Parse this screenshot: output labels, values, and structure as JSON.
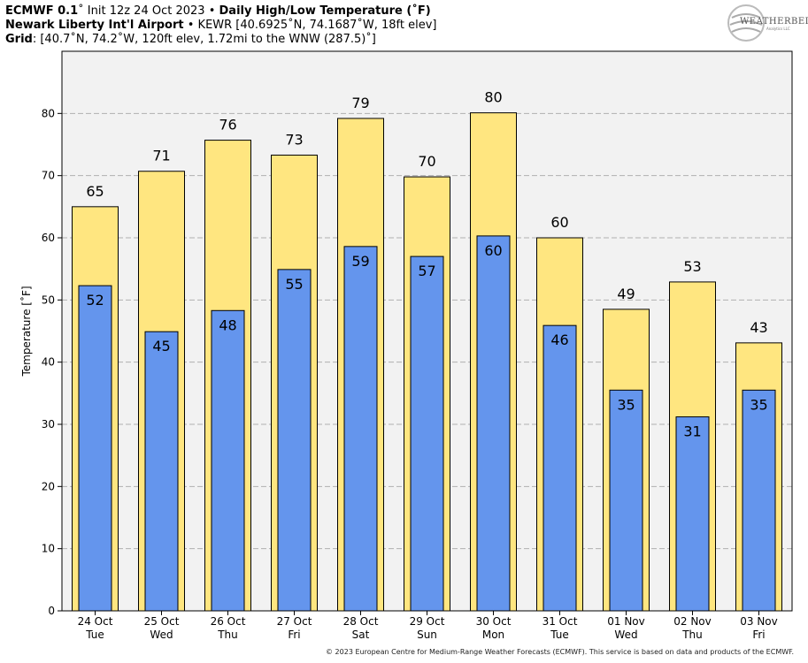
{
  "header": {
    "line1_model": "ECMWF 0.1",
    "line1_init": "˚ Init 12z 24 Oct 2023",
    "line1_sep": " • ",
    "line1_title": "Daily High/Low Temperature (˚F)",
    "line2_station": "Newark Liberty Int'l Airport",
    "line2_sep": " • ",
    "line2_detail": "KEWR [40.6925˚N, 74.1687˚W, 18ft elev]",
    "line3_label": "Grid",
    "line3_detail": ": [40.7˚N, 74.2˚W, 120ft elev, 1.72mi to the WNW (287.5)˚]"
  },
  "logo": {
    "text": "WEATHERBELL",
    "sub": "Analytics LLC"
  },
  "footer": {
    "text": "© 2023 European Centre for Medium-Range Weather Forecasts (ECMWF). This service is based on data and products of the ECMWF."
  },
  "colors": {
    "high_bar": "#ffe680",
    "low_bar": "#6495ed",
    "plot_bg": "#f2f2f2",
    "grid": "#b0b0b0"
  },
  "chart_data": {
    "type": "bar",
    "ylabel": "Temperature [˚F]",
    "ylim": [
      0,
      90
    ],
    "yticks": [
      0,
      10,
      20,
      30,
      40,
      50,
      60,
      70,
      80
    ],
    "grid": true,
    "categories": [
      {
        "date": "24 Oct",
        "day": "Tue"
      },
      {
        "date": "25 Oct",
        "day": "Wed"
      },
      {
        "date": "26 Oct",
        "day": "Thu"
      },
      {
        "date": "27 Oct",
        "day": "Fri"
      },
      {
        "date": "28 Oct",
        "day": "Sat"
      },
      {
        "date": "29 Oct",
        "day": "Sun"
      },
      {
        "date": "30 Oct",
        "day": "Mon"
      },
      {
        "date": "31 Oct",
        "day": "Tue"
      },
      {
        "date": "01 Nov",
        "day": "Wed"
      },
      {
        "date": "02 Nov",
        "day": "Thu"
      },
      {
        "date": "03 Nov",
        "day": "Fri"
      }
    ],
    "series": [
      {
        "key": "high",
        "values": [
          65,
          70.7,
          75.7,
          73.3,
          79.2,
          69.8,
          80.1,
          60.0,
          48.5,
          52.9,
          43.1
        ],
        "labels": [
          "65",
          "71",
          "76",
          "73",
          "79",
          "70",
          "80",
          "60",
          "49",
          "53",
          "43"
        ]
      },
      {
        "key": "low",
        "values": [
          52.3,
          44.9,
          48.3,
          54.9,
          58.6,
          57.0,
          60.3,
          45.9,
          35.5,
          31.2,
          35.5
        ],
        "labels": [
          "52",
          "45",
          "48",
          "55",
          "59",
          "57",
          "60",
          "46",
          "35",
          "31",
          "35"
        ]
      }
    ]
  }
}
